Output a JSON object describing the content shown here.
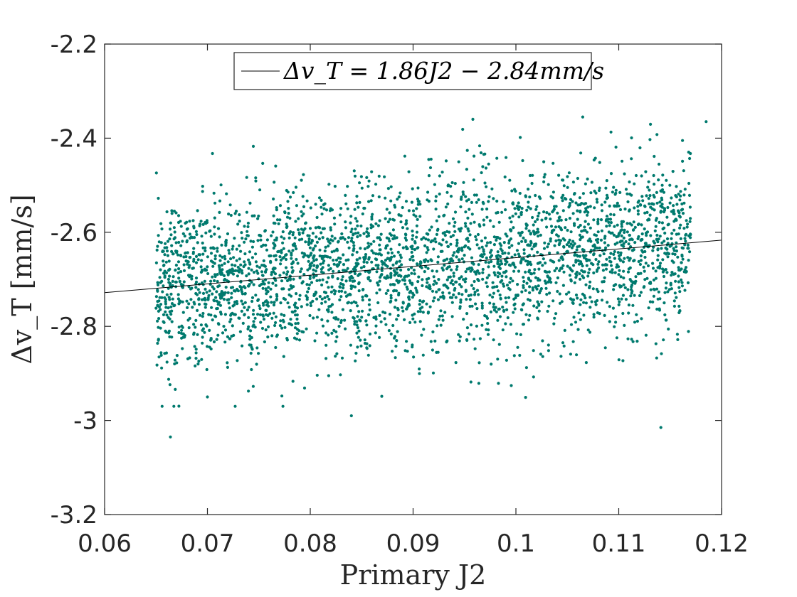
{
  "chart_data": {
    "type": "scatter",
    "title": "",
    "xlabel": "Primary J2",
    "ylabel": "Δv_T [mm/s]",
    "xlim": [
      0.06,
      0.12
    ],
    "ylim": [
      -3.2,
      -2.2
    ],
    "x_ticks": [
      "0.06",
      "0.07",
      "0.08",
      "0.09",
      "0.1",
      "0.11",
      "0.12"
    ],
    "y_ticks": [
      "-2.2",
      "-2.4",
      "-2.6",
      "-2.8",
      "-3",
      "-3.2"
    ],
    "grid": false,
    "legend_position": "top-center",
    "legend_label": "Δv_T = 1.86J2 − 2.84mm/s",
    "scatter": {
      "color": "#007a6e",
      "n_points": 3200,
      "x_range": [
        0.065,
        0.117
      ],
      "y_std": 0.09,
      "sample_outliers": [
        {
          "x": 0.0664,
          "y": -3.035
        },
        {
          "x": 0.0727,
          "y": -2.97
        },
        {
          "x": 0.084,
          "y": -2.99
        },
        {
          "x": 0.1141,
          "y": -3.015
        },
        {
          "x": 0.1065,
          "y": -2.355
        },
        {
          "x": 0.1185,
          "y": -2.365
        },
        {
          "x": 0.1162,
          "y": -2.405
        },
        {
          "x": 0.07,
          "y": -2.95
        }
      ]
    },
    "fit_line": {
      "slope": 1.86,
      "intercept": -2.84,
      "color": "#000000"
    }
  }
}
